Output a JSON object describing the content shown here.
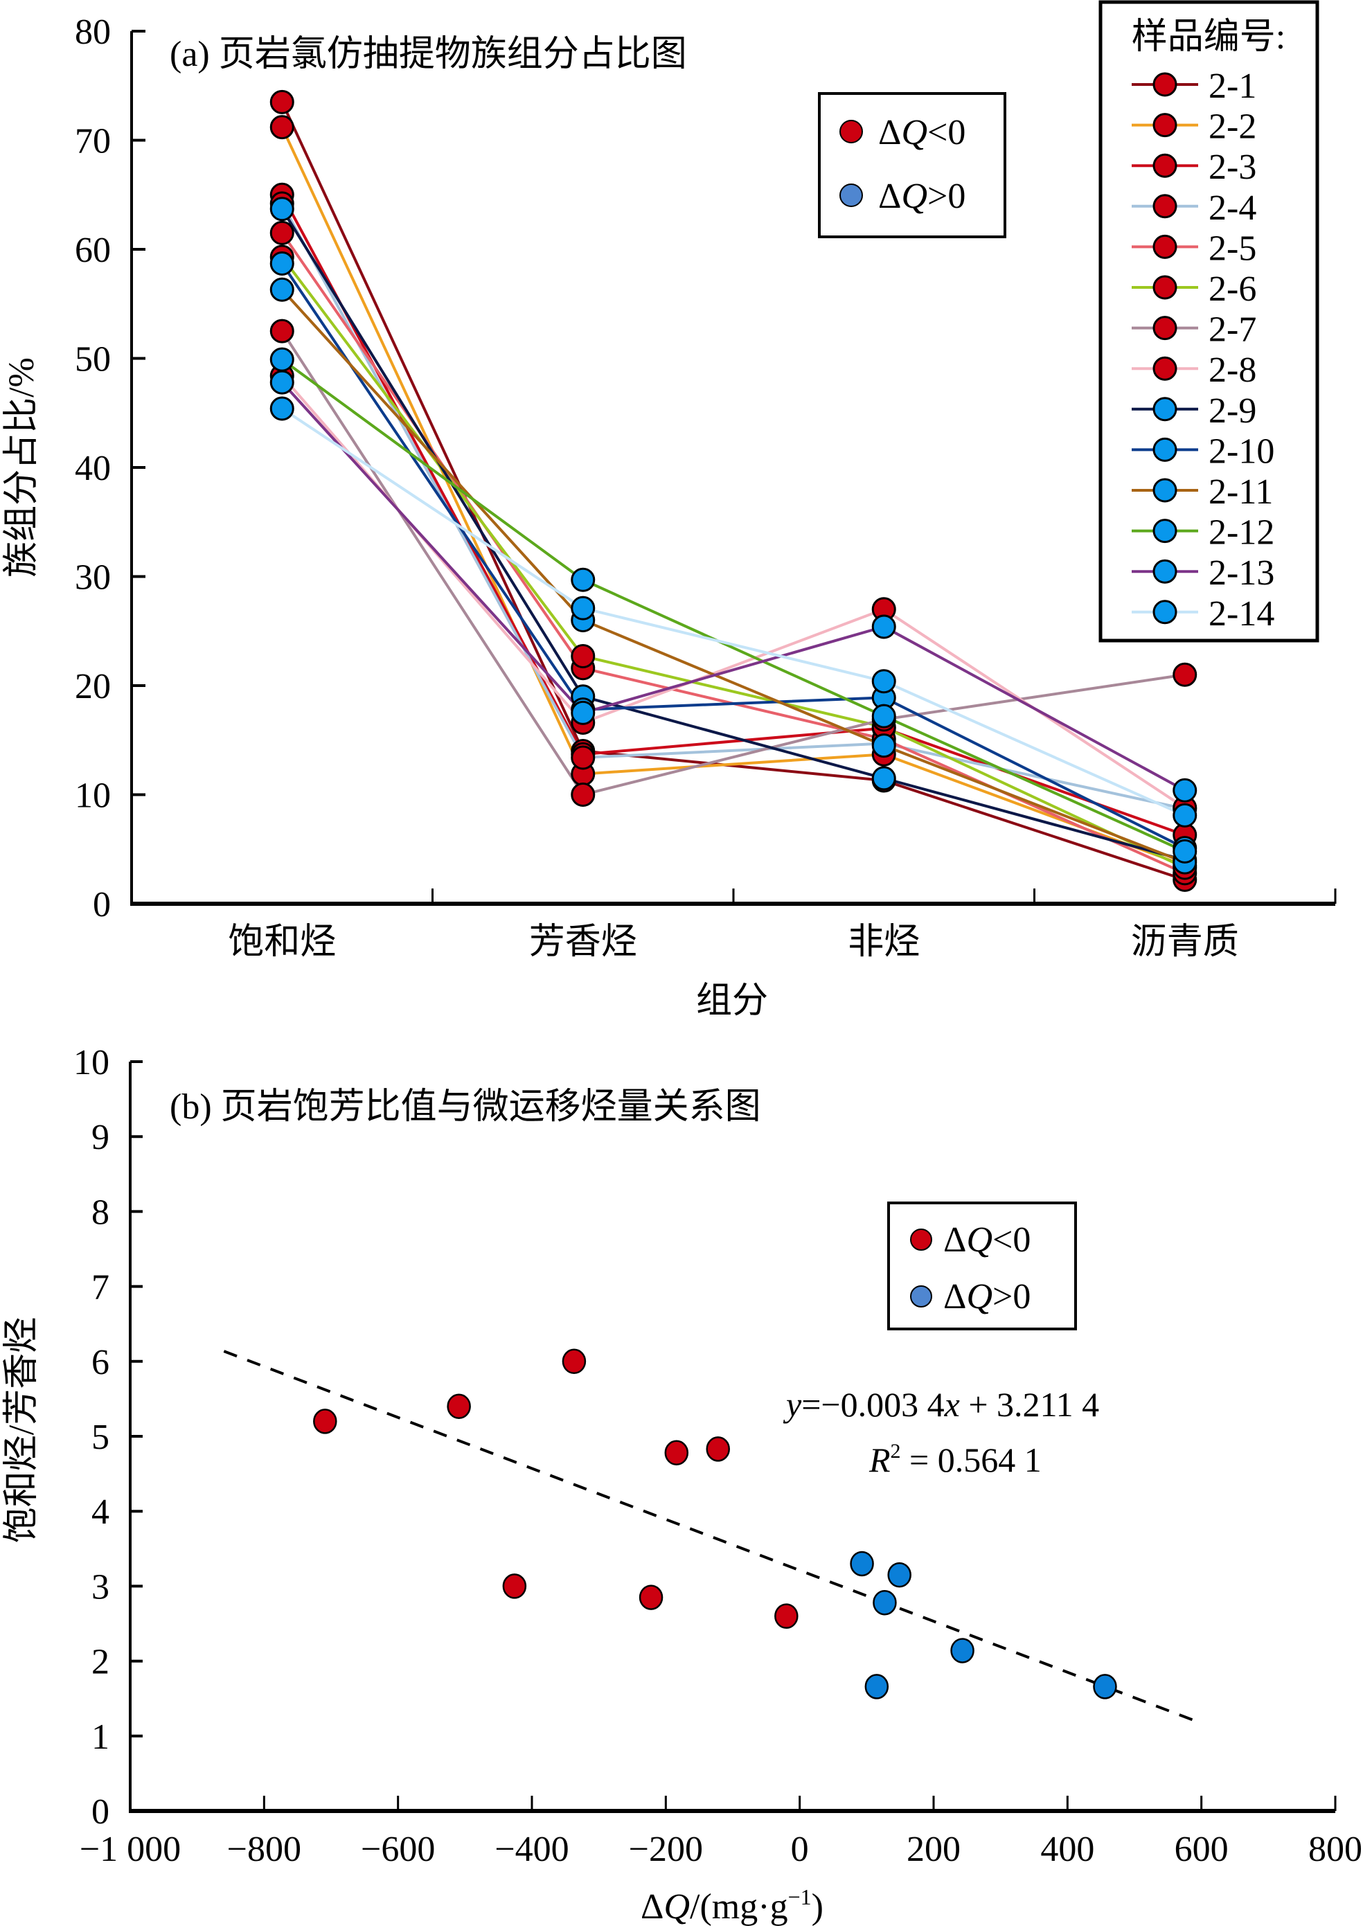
{
  "chart_data": [
    {
      "type": "line",
      "panel": "a",
      "title": "(a) 页岩氯仿抽提物族组分占比图",
      "xlabel": "组分",
      "ylabel": "族组分占比/%",
      "categories": [
        "饱和烃",
        "芳香烃",
        "非烃",
        "沥青质"
      ],
      "ylim": [
        0,
        80
      ],
      "yticks": [
        0,
        10,
        20,
        30,
        40,
        50,
        60,
        70,
        80
      ],
      "grid": false,
      "legend_title": "样品编号:",
      "legend_position": "top-right",
      "marker_legend": [
        {
          "label_prefix": "Δ",
          "label_var": "Q",
          "label_suffix": "<0",
          "color": "#cc0010"
        },
        {
          "label_prefix": "Δ",
          "label_var": "Q",
          "label_suffix": ">0",
          "color": "#4f86d0"
        }
      ],
      "series": [
        {
          "name": "2-1",
          "line_color": "#8b0a14",
          "marker": "red",
          "values": [
            73.5,
            14.0,
            11.3,
            2.2
          ]
        },
        {
          "name": "2-2",
          "line_color": "#f0a020",
          "marker": "red",
          "values": [
            71.2,
            11.9,
            13.7,
            3.5
          ]
        },
        {
          "name": "2-3",
          "line_color": "#cc0a1a",
          "marker": "red",
          "values": [
            65.0,
            13.7,
            16.1,
            6.3
          ]
        },
        {
          "name": "2-4",
          "line_color": "#a4c2dc",
          "marker": "red",
          "values": [
            64.2,
            13.4,
            14.7,
            8.7
          ]
        },
        {
          "name": "2-5",
          "line_color": "#e8606a",
          "marker": "red",
          "values": [
            61.5,
            21.6,
            15.1,
            2.8
          ]
        },
        {
          "name": "2-6",
          "line_color": "#9cc820",
          "marker": "red",
          "values": [
            59.3,
            22.7,
            16.2,
            3.3
          ]
        },
        {
          "name": "2-7",
          "line_color": "#a88898",
          "marker": "red",
          "values": [
            52.5,
            10.0,
            16.9,
            21.0
          ]
        },
        {
          "name": "2-8",
          "line_color": "#f4b4c0",
          "marker": "red",
          "values": [
            48.4,
            16.6,
            27.0,
            8.8
          ]
        },
        {
          "name": "2-9",
          "line_color": "#0c1848",
          "marker": "blue",
          "values": [
            63.7,
            19.0,
            11.5,
            4.0
          ]
        },
        {
          "name": "2-10",
          "line_color": "#0c3c8c",
          "marker": "blue",
          "values": [
            58.7,
            17.8,
            18.9,
            5.1
          ]
        },
        {
          "name": "2-11",
          "line_color": "#a86414",
          "marker": "blue",
          "values": [
            56.3,
            26.0,
            14.5,
            3.8
          ]
        },
        {
          "name": "2-12",
          "line_color": "#5ca81c",
          "marker": "blue",
          "values": [
            49.9,
            29.7,
            17.2,
            4.8
          ]
        },
        {
          "name": "2-13",
          "line_color": "#7c3488",
          "marker": "blue",
          "values": [
            47.8,
            17.5,
            25.4,
            10.4
          ]
        },
        {
          "name": "2-14",
          "line_color": "#c4e4f8",
          "marker": "blue",
          "values": [
            45.4,
            27.1,
            20.4,
            8.1
          ]
        }
      ]
    },
    {
      "type": "scatter",
      "panel": "b",
      "title": "(b) 页岩饱芳比值与微运移烃量关系图",
      "xlabel_prefix": "Δ",
      "xlabel_var": "Q",
      "xlabel_unit": "/(mg·g",
      "xlabel_sup": "−1",
      "xlabel_close": ")",
      "ylabel": "饱和烃/芳香烃",
      "xlim": [
        -1000,
        800
      ],
      "ylim": [
        0,
        10
      ],
      "xticks": [
        -1000,
        -800,
        -600,
        -400,
        -200,
        0,
        200,
        400,
        600,
        800
      ],
      "xtick_labels": [
        "−1 000",
        "−800",
        "−600",
        "−400",
        "−200",
        "0",
        "200",
        "400",
        "600",
        "800"
      ],
      "yticks": [
        0,
        1,
        2,
        3,
        4,
        5,
        6,
        7,
        8,
        9,
        10
      ],
      "grid": false,
      "legend_position": "top-right",
      "legend": [
        {
          "label_prefix": "Δ",
          "label_var": "Q",
          "label_suffix": "<0",
          "color": "#cc0010"
        },
        {
          "label_prefix": "Δ",
          "label_var": "Q",
          "label_suffix": ">0",
          "color": "#4f86d0"
        }
      ],
      "series": [
        {
          "name": "ΔQ<0",
          "color": "#cc0010",
          "points": [
            [
              -709,
              5.2
            ],
            [
              -509,
              5.4
            ],
            [
              -337,
              6.0
            ],
            [
              -426,
              3.0
            ],
            [
              -222,
              2.85
            ],
            [
              -184,
              4.78
            ],
            [
              -122,
              4.83
            ],
            [
              -20,
              2.6
            ]
          ]
        },
        {
          "name": "ΔQ>0",
          "color": "#0a7fd8",
          "points": [
            [
              93,
              3.3
            ],
            [
              149,
              3.15
            ],
            [
              127,
              2.78
            ],
            [
              243,
              2.14
            ],
            [
              115,
              1.66
            ],
            [
              456,
              1.66
            ]
          ]
        }
      ],
      "trendline": {
        "slope": -0.0034,
        "intercept": 3.2114,
        "x_range": [
          -860,
          600
        ],
        "style": "dashed",
        "equation_y": "y",
        "equation_rest": "=−0.003 4",
        "equation_x": "x",
        "equation_tail": " + 3.211 4",
        "r2_var": "R",
        "r2_sup": "2",
        "r2_value": " = 0.564 1"
      }
    }
  ]
}
